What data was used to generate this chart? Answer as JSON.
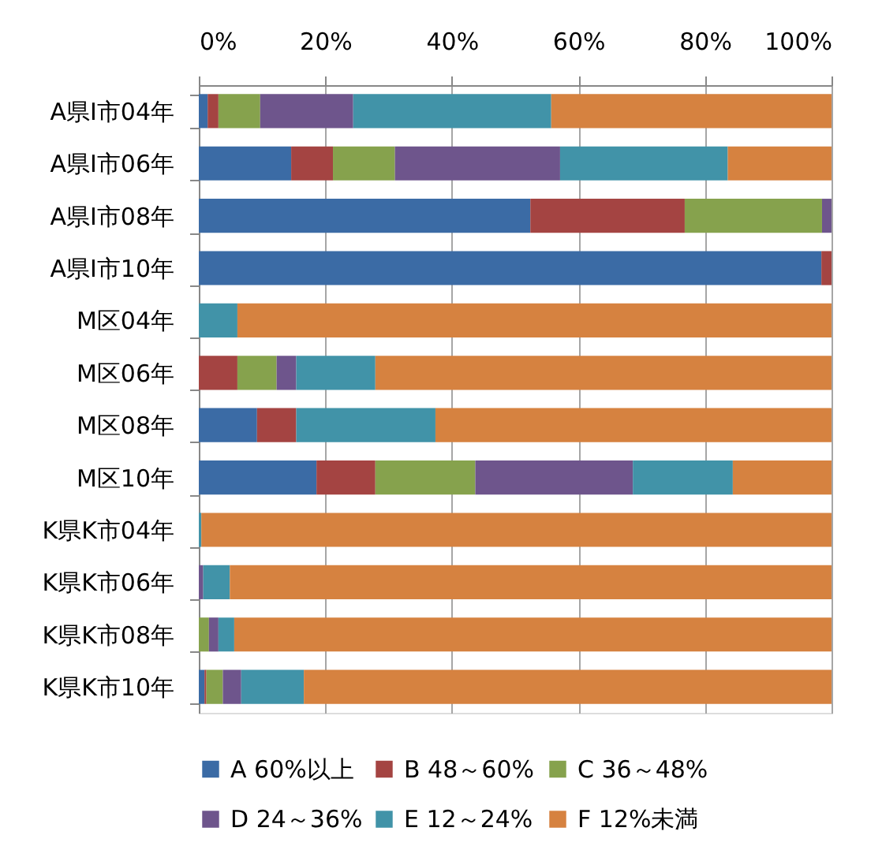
{
  "chart_data": {
    "type": "bar",
    "orientation": "horizontal",
    "stacked": true,
    "categories": [
      "A県I市04年",
      "A県I市06年",
      "A県I市08年",
      "A県I市10年",
      "M区04年",
      "M区06年",
      "M区08年",
      "M区10年",
      "K県K市04年",
      "K県K市06年",
      "K県K市08年",
      "K県K市10年"
    ],
    "series": [
      {
        "name": "A 60%以上",
        "color": "#3b6ba5",
        "values": [
          1.4,
          14.6,
          52.4,
          98.4,
          0,
          0,
          9.2,
          18.6,
          0,
          0,
          0,
          0.9
        ]
      },
      {
        "name": "B 48～60%",
        "color": "#a44442",
        "values": [
          1.7,
          6.6,
          24.4,
          1.6,
          0,
          6.1,
          6.2,
          9.3,
          0,
          0,
          0,
          0.3
        ]
      },
      {
        "name": "C 36～48%",
        "color": "#86a24d",
        "values": [
          6.6,
          9.8,
          21.7,
          0,
          0,
          6.2,
          0,
          15.8,
          0,
          0,
          1.6,
          2.6
        ]
      },
      {
        "name": "D 24～36%",
        "color": "#6e558c",
        "values": [
          14.7,
          26.1,
          1.5,
          0,
          0,
          3.1,
          0,
          24.9,
          0,
          0.7,
          1.5,
          2.9
        ]
      },
      {
        "name": "E 12～24%",
        "color": "#4193a8",
        "values": [
          31.3,
          26.5,
          0,
          0,
          6.1,
          12.5,
          22.0,
          15.8,
          0.4,
          4.2,
          2.5,
          9.9
        ]
      },
      {
        "name": "F 12%未満",
        "color": "#d68240",
        "values": [
          44.3,
          16.4,
          0,
          0,
          93.9,
          72.1,
          62.6,
          15.6,
          99.6,
          95.1,
          94.4,
          83.4
        ]
      }
    ],
    "xlim": [
      0,
      100
    ],
    "xticks": [
      {
        "value": 0,
        "label": "0%"
      },
      {
        "value": 20,
        "label": "20%"
      },
      {
        "value": 40,
        "label": "40%"
      },
      {
        "value": 60,
        "label": "60%"
      },
      {
        "value": 80,
        "label": "80%"
      },
      {
        "value": 100,
        "label": "100%"
      }
    ],
    "grid": "x",
    "legend": "bottom"
  }
}
